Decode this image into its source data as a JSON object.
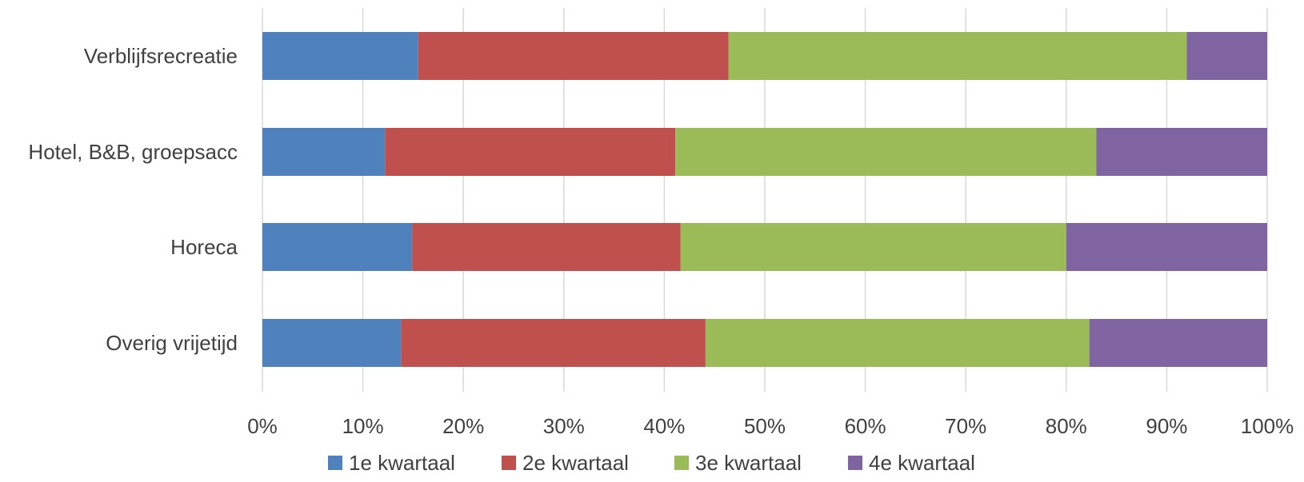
{
  "chart_data": {
    "type": "bar",
    "orientation": "horizontal",
    "stacked": "percent",
    "categories": [
      "Verblijfsrecreatie",
      "Hotel, B&B, groepsacc",
      "Horeca",
      "Overig vrijetijd"
    ],
    "series": [
      {
        "name": "1e kwartaal",
        "color": "#4f81bd",
        "values": [
          15.5,
          12.2,
          14.9,
          13.8
        ]
      },
      {
        "name": "2e kwartaal",
        "color": "#c0504d",
        "values": [
          30.9,
          28.9,
          26.7,
          30.3
        ]
      },
      {
        "name": "3e kwartaal",
        "color": "#9bbb59",
        "values": [
          45.6,
          41.9,
          38.4,
          38.2
        ]
      },
      {
        "name": "4e kwartaal",
        "color": "#8064a2",
        "values": [
          8.0,
          17.0,
          20.0,
          17.7
        ]
      }
    ],
    "xlim": [
      0,
      100
    ],
    "x_ticks": [
      "0%",
      "10%",
      "20%",
      "30%",
      "40%",
      "50%",
      "60%",
      "70%",
      "80%",
      "90%",
      "100%"
    ],
    "grid": "vertical",
    "legend_position": "bottom"
  }
}
